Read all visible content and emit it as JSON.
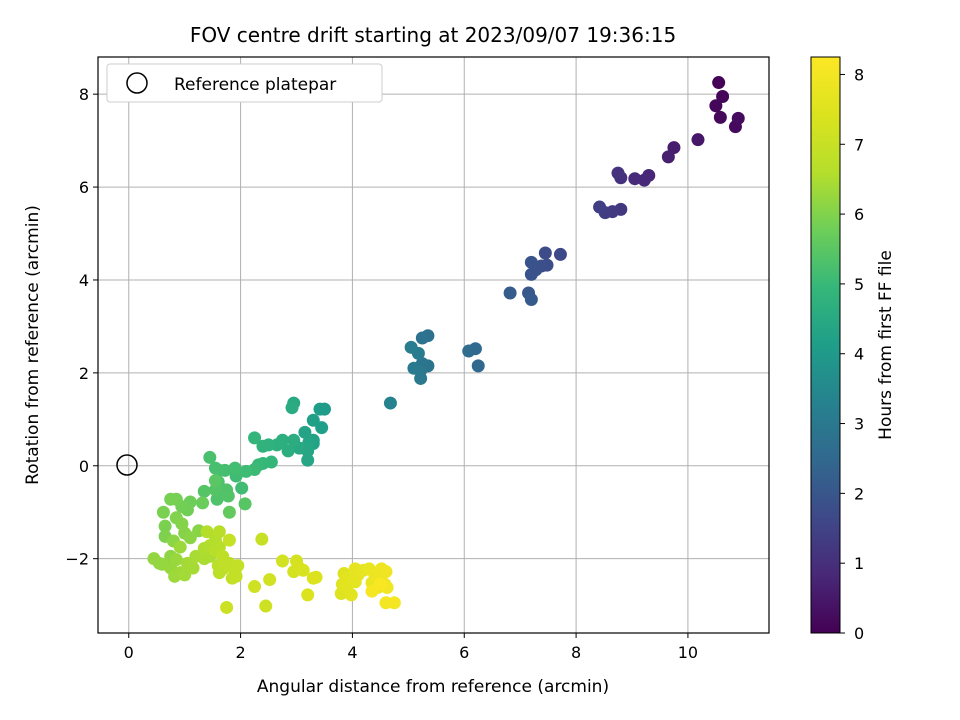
{
  "chart_data": {
    "type": "scatter",
    "title": "FOV centre drift starting at 2023/09/07 19:36:15",
    "xlabel": "Angular distance from reference (arcmin)",
    "ylabel": "Rotation from reference (arcmin)",
    "xlim": [
      -0.55,
      11.45
    ],
    "ylim": [
      -3.6,
      8.8
    ],
    "xticks": [
      0,
      2,
      4,
      6,
      8,
      10
    ],
    "yticks": [
      -2,
      0,
      2,
      4,
      6,
      8
    ],
    "ytick_labels": [
      "−2",
      "0",
      "2",
      "4",
      "6",
      "8"
    ],
    "grid": true,
    "legend": {
      "location": "top-left",
      "entries": [
        "Reference platepar"
      ]
    },
    "reference_point": {
      "x": 0,
      "y": 0
    },
    "colorbar": {
      "label": "Hours from first FF file",
      "range": [
        0,
        8.25
      ],
      "ticks": [
        0,
        1,
        2,
        3,
        4,
        5,
        6,
        7,
        8
      ],
      "colormap": "viridis"
    },
    "points": [
      [
        10.55,
        8.25,
        0.05
      ],
      [
        10.62,
        7.95,
        0.1
      ],
      [
        10.5,
        7.75,
        0.12
      ],
      [
        10.58,
        7.5,
        0.15
      ],
      [
        10.85,
        7.3,
        0.2
      ],
      [
        10.9,
        7.48,
        0.22
      ],
      [
        10.18,
        7.02,
        0.45
      ],
      [
        9.75,
        6.85,
        0.6
      ],
      [
        9.65,
        6.65,
        0.65
      ],
      [
        9.3,
        6.25,
        0.8
      ],
      [
        9.22,
        6.15,
        0.85
      ],
      [
        9.05,
        6.18,
        0.9
      ],
      [
        8.8,
        6.2,
        1.05
      ],
      [
        8.75,
        6.3,
        1.1
      ],
      [
        8.8,
        5.52,
        1.2
      ],
      [
        8.65,
        5.47,
        1.3
      ],
      [
        8.52,
        5.45,
        1.35
      ],
      [
        8.42,
        5.57,
        1.4
      ],
      [
        7.72,
        4.55,
        1.65
      ],
      [
        7.45,
        4.58,
        1.7
      ],
      [
        7.48,
        4.32,
        1.75
      ],
      [
        7.38,
        4.3,
        1.8
      ],
      [
        7.28,
        4.22,
        1.85
      ],
      [
        7.2,
        4.12,
        1.9
      ],
      [
        7.2,
        4.38,
        1.95
      ],
      [
        7.15,
        3.72,
        2.05
      ],
      [
        7.2,
        3.58,
        2.1
      ],
      [
        6.82,
        3.72,
        2.15
      ],
      [
        6.25,
        2.15,
        2.5
      ],
      [
        6.2,
        2.52,
        2.55
      ],
      [
        6.08,
        2.47,
        2.6
      ],
      [
        5.35,
        2.8,
        2.75
      ],
      [
        5.25,
        2.75,
        2.8
      ],
      [
        5.35,
        2.15,
        2.85
      ],
      [
        5.25,
        2.2,
        2.9
      ],
      [
        5.22,
        2.05,
        2.95
      ],
      [
        5.22,
        1.88,
        3.0
      ],
      [
        5.1,
        2.1,
        3.05
      ],
      [
        5.18,
        2.42,
        3.1
      ],
      [
        5.05,
        2.55,
        3.15
      ],
      [
        4.68,
        1.35,
        3.3
      ],
      [
        3.5,
        1.22,
        4.05
      ],
      [
        3.42,
        1.22,
        4.1
      ],
      [
        3.45,
        0.82,
        4.15
      ],
      [
        3.3,
        0.98,
        4.2
      ],
      [
        3.3,
        0.55,
        4.25
      ],
      [
        3.3,
        0.48,
        4.28
      ],
      [
        3.15,
        0.72,
        4.3
      ],
      [
        3.22,
        0.5,
        4.35
      ],
      [
        3.2,
        0.32,
        4.38
      ],
      [
        3.2,
        0.12,
        4.4
      ],
      [
        3.05,
        0.38,
        4.45
      ],
      [
        2.95,
        1.35,
        4.5
      ],
      [
        2.92,
        1.25,
        4.55
      ],
      [
        2.95,
        0.55,
        4.6
      ],
      [
        2.85,
        0.32,
        4.62
      ],
      [
        2.75,
        0.55,
        4.65
      ],
      [
        2.65,
        0.45,
        4.7
      ],
      [
        2.5,
        0.45,
        4.75
      ],
      [
        2.4,
        0.42,
        4.8
      ],
      [
        2.25,
        0.6,
        4.85
      ],
      [
        2.55,
        0.08,
        4.9
      ],
      [
        2.4,
        0.05,
        4.95
      ],
      [
        2.32,
        0.02,
        5.0
      ],
      [
        2.25,
        -0.08,
        5.05
      ],
      [
        2.1,
        -0.12,
        5.08
      ],
      [
        1.92,
        -0.22,
        5.1
      ],
      [
        2.02,
        -0.48,
        5.12
      ],
      [
        1.9,
        -0.05,
        5.15
      ],
      [
        1.72,
        -0.1,
        5.18
      ],
      [
        1.62,
        -0.1,
        5.2
      ],
      [
        1.55,
        -0.05,
        5.22
      ],
      [
        1.45,
        0.18,
        5.25
      ],
      [
        1.6,
        -0.35,
        5.28
      ],
      [
        1.62,
        -0.6,
        5.3
      ],
      [
        1.58,
        -0.72,
        5.33
      ],
      [
        1.75,
        -0.52,
        5.35
      ],
      [
        1.78,
        -0.65,
        5.38
      ],
      [
        1.35,
        -0.55,
        5.4
      ],
      [
        1.55,
        -0.52,
        5.42
      ],
      [
        2.08,
        -0.82,
        5.45
      ],
      [
        1.55,
        -0.32,
        5.48
      ],
      [
        1.8,
        -1.0,
        5.6
      ],
      [
        1.32,
        -0.8,
        5.7
      ],
      [
        1.1,
        -0.78,
        5.75
      ],
      [
        1.05,
        -0.95,
        5.8
      ],
      [
        0.95,
        -0.88,
        5.82
      ],
      [
        0.85,
        -0.72,
        5.85
      ],
      [
        0.75,
        -0.72,
        5.88
      ],
      [
        0.62,
        -1.0,
        5.9
      ],
      [
        0.65,
        -1.3,
        5.92
      ],
      [
        0.65,
        -1.52,
        5.95
      ],
      [
        0.85,
        -1.12,
        6.0
      ],
      [
        0.95,
        -1.25,
        6.02
      ],
      [
        1.0,
        -1.45,
        6.05
      ],
      [
        1.25,
        -1.4,
        6.08
      ],
      [
        1.1,
        -1.55,
        6.1
      ],
      [
        0.8,
        -1.62,
        6.12
      ],
      [
        0.75,
        -1.95,
        6.15
      ],
      [
        0.55,
        -2.1,
        6.18
      ],
      [
        0.45,
        -2.0,
        6.2
      ],
      [
        0.6,
        -2.12,
        6.22
      ],
      [
        0.75,
        -2.2,
        6.25
      ],
      [
        0.85,
        -2.02,
        6.28
      ],
      [
        0.92,
        -1.75,
        6.3
      ],
      [
        0.82,
        -2.38,
        6.32
      ],
      [
        0.92,
        -2.3,
        6.35
      ],
      [
        1.0,
        -2.35,
        6.38
      ],
      [
        1.05,
        -2.1,
        6.4
      ],
      [
        1.15,
        -2.2,
        6.42
      ],
      [
        1.2,
        -1.95,
        6.45
      ],
      [
        1.35,
        -2.0,
        6.48
      ],
      [
        1.45,
        -1.95,
        6.5
      ],
      [
        1.35,
        -1.78,
        6.52
      ],
      [
        1.45,
        -1.72,
        6.55
      ],
      [
        1.55,
        -1.6,
        6.58
      ],
      [
        1.4,
        -1.42,
        6.6
      ],
      [
        1.55,
        -1.82,
        6.62
      ],
      [
        1.62,
        -1.75,
        6.65
      ],
      [
        1.62,
        -1.42,
        6.68
      ],
      [
        1.6,
        -2.15,
        6.7
      ],
      [
        1.68,
        -2.22,
        6.72
      ],
      [
        1.62,
        -2.3,
        6.75
      ],
      [
        1.8,
        -2.1,
        6.78
      ],
      [
        1.68,
        -1.95,
        6.8
      ],
      [
        1.72,
        -2.15,
        6.82
      ],
      [
        1.85,
        -2.42,
        6.85
      ],
      [
        1.9,
        -2.3,
        6.88
      ],
      [
        1.95,
        -2.15,
        6.9
      ],
      [
        1.92,
        -2.38,
        6.92
      ],
      [
        1.8,
        -1.6,
        6.95
      ],
      [
        2.38,
        -1.58,
        7.0
      ],
      [
        1.75,
        -3.05,
        7.1
      ],
      [
        2.45,
        -3.02,
        7.12
      ],
      [
        2.25,
        -2.6,
        7.15
      ],
      [
        2.52,
        -2.45,
        7.18
      ],
      [
        2.75,
        -2.05,
        7.2
      ],
      [
        3.0,
        -2.05,
        7.25
      ],
      [
        2.95,
        -2.28,
        7.3
      ],
      [
        3.05,
        -2.2,
        7.32
      ],
      [
        3.12,
        -2.25,
        7.35
      ],
      [
        3.3,
        -2.42,
        7.4
      ],
      [
        3.2,
        -2.78,
        7.42
      ],
      [
        3.35,
        -2.4,
        7.45
      ],
      [
        3.8,
        -2.75,
        7.5
      ],
      [
        3.85,
        -2.32,
        7.52
      ],
      [
        3.82,
        -2.55,
        7.55
      ],
      [
        3.9,
        -2.62,
        7.58
      ],
      [
        3.92,
        -2.42,
        7.6
      ],
      [
        3.98,
        -2.78,
        7.62
      ],
      [
        4.05,
        -2.5,
        7.65
      ],
      [
        4.05,
        -2.22,
        7.68
      ],
      [
        4.1,
        -2.35,
        7.7
      ],
      [
        4.2,
        -2.25,
        7.72
      ],
      [
        4.3,
        -2.22,
        7.75
      ],
      [
        4.35,
        -2.52,
        7.78
      ],
      [
        4.45,
        -2.62,
        7.8
      ],
      [
        4.5,
        -2.45,
        7.82
      ],
      [
        4.4,
        -2.35,
        7.85
      ],
      [
        4.52,
        -2.22,
        7.88
      ],
      [
        4.6,
        -2.28,
        7.9
      ],
      [
        4.58,
        -2.55,
        7.92
      ],
      [
        4.62,
        -2.62,
        7.95
      ],
      [
        4.6,
        -2.95,
        8.0
      ],
      [
        4.75,
        -2.95,
        8.05
      ],
      [
        4.35,
        -2.7,
        8.1
      ],
      [
        4.5,
        -2.55,
        8.15
      ]
    ]
  }
}
